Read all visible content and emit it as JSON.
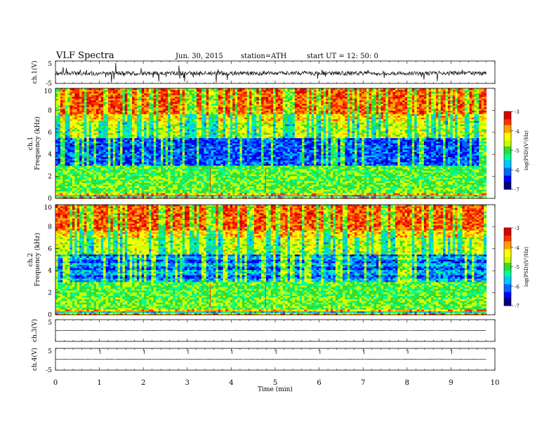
{
  "header": {
    "title": "VLF  Spectra",
    "date": "Jun. 30, 2015",
    "station": "station=ATH",
    "start": "start  UT  =    12: 50: 0"
  },
  "chart_data": [
    {
      "type": "line",
      "ylabel": "ch.1(V)",
      "ylim": [
        -5,
        5
      ],
      "yticks": [
        "5",
        "-5"
      ],
      "trace": "noisy waveform around -0.5 V with frequent impulsive spikes"
    },
    {
      "type": "heatmap",
      "ylabel": "ch.1\nFrequency  (kHz)",
      "ylim": [
        0,
        10
      ],
      "yticks": [
        "0",
        "2",
        "4",
        "6",
        "8",
        "10"
      ],
      "colorbar": {
        "label": "log(PSD)(V²/Hz)",
        "ticks": [
          "-3",
          "-4",
          "-5",
          "-6",
          "-7"
        ],
        "range": [
          -7,
          -3
        ]
      }
    },
    {
      "type": "heatmap",
      "ylabel": "ch.2\nFrequency  (kHz)",
      "ylim": [
        0,
        10
      ],
      "yticks": [
        "0",
        "2",
        "4",
        "6",
        "8",
        "10"
      ],
      "colorbar": {
        "label": "log(PSD)(V²/Hz)",
        "ticks": [
          "-3",
          "-4",
          "-5",
          "-6",
          "-7"
        ],
        "range": [
          -7,
          -3
        ]
      }
    },
    {
      "type": "line",
      "ylabel": "ch.3(V)",
      "ylim": [
        -5,
        5
      ],
      "yticks": [
        "5"
      ],
      "trace": "flat near 0 V"
    },
    {
      "type": "line",
      "ylabel": "ch.4(V)",
      "ylim": [
        -5,
        5
      ],
      "yticks": [
        "5",
        "-5"
      ],
      "trace": "flat near 0 V"
    }
  ],
  "xaxis": {
    "label": "Time  (min)",
    "xlim": [
      0,
      10
    ],
    "ticks": [
      "0",
      "1",
      "2",
      "3",
      "4",
      "5",
      "6",
      "7",
      "8",
      "9",
      "10"
    ],
    "data_end": 9.8
  },
  "colors": {
    "scale": [
      "#000080",
      "#0000ff",
      "#0066ff",
      "#00c8ff",
      "#00ff96",
      "#32dc32",
      "#c8ff00",
      "#ffff00",
      "#ffa500",
      "#ff3200",
      "#dc0000",
      "#ffffff"
    ],
    "trace": "#000000"
  }
}
